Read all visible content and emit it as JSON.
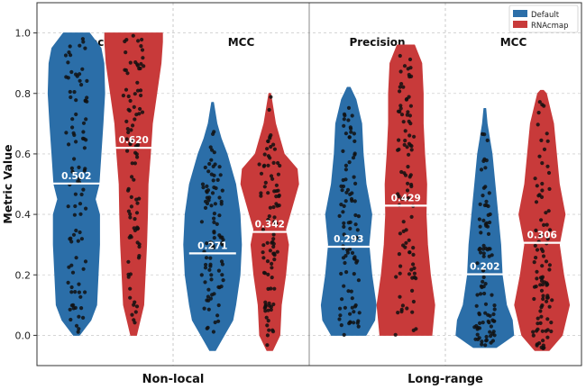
{
  "chart_data": {
    "type": "violin",
    "ylabel": "Metric Value",
    "ylim": [
      -0.1,
      1.1
    ],
    "yticks": [
      "0.0",
      "0.2",
      "0.4",
      "0.6",
      "0.8",
      "1.0"
    ],
    "grid": true,
    "legend_position": "top-right",
    "groups": [
      {
        "label": "Non-local",
        "panels": [
          {
            "label": "Precision",
            "violins": [
              {
                "series": "Default",
                "median": 0.502,
                "median_label": "0.502",
                "min": 0.0,
                "max": 1.0,
                "profile": [
                  [
                    0.0,
                    0.1
                  ],
                  [
                    0.05,
                    0.5
                  ],
                  [
                    0.1,
                    0.7
                  ],
                  [
                    0.2,
                    0.75
                  ],
                  [
                    0.3,
                    0.8
                  ],
                  [
                    0.4,
                    0.8
                  ],
                  [
                    0.45,
                    0.65
                  ],
                  [
                    0.5,
                    0.78
                  ],
                  [
                    0.6,
                    0.85
                  ],
                  [
                    0.7,
                    0.92
                  ],
                  [
                    0.8,
                    0.98
                  ],
                  [
                    0.9,
                    0.95
                  ],
                  [
                    0.95,
                    0.85
                  ],
                  [
                    1.0,
                    0.45
                  ]
                ]
              },
              {
                "series": "RNAcmap",
                "median": 0.62,
                "median_label": "0.620",
                "min": 0.0,
                "max": 1.0,
                "profile": [
                  [
                    0.0,
                    0.1
                  ],
                  [
                    0.1,
                    0.35
                  ],
                  [
                    0.2,
                    0.4
                  ],
                  [
                    0.3,
                    0.45
                  ],
                  [
                    0.4,
                    0.48
                  ],
                  [
                    0.5,
                    0.5
                  ],
                  [
                    0.6,
                    0.58
                  ],
                  [
                    0.7,
                    0.65
                  ],
                  [
                    0.8,
                    0.8
                  ],
                  [
                    0.9,
                    0.95
                  ],
                  [
                    0.97,
                    1.0
                  ],
                  [
                    1.0,
                    1.0
                  ]
                ]
              }
            ]
          },
          {
            "label": "MCC",
            "violins": [
              {
                "series": "Default",
                "median": 0.271,
                "median_label": "0.271",
                "min": -0.05,
                "max": 0.77,
                "profile": [
                  [
                    -0.05,
                    0.1
                  ],
                  [
                    0.0,
                    0.4
                  ],
                  [
                    0.05,
                    0.7
                  ],
                  [
                    0.1,
                    0.8
                  ],
                  [
                    0.2,
                    0.95
                  ],
                  [
                    0.3,
                    1.0
                  ],
                  [
                    0.4,
                    0.95
                  ],
                  [
                    0.5,
                    0.8
                  ],
                  [
                    0.6,
                    0.5
                  ],
                  [
                    0.65,
                    0.3
                  ],
                  [
                    0.7,
                    0.15
                  ],
                  [
                    0.77,
                    0.03
                  ]
                ]
              },
              {
                "series": "RNAcmap",
                "median": 0.342,
                "median_label": "0.342",
                "min": -0.05,
                "max": 0.8,
                "profile": [
                  [
                    -0.05,
                    0.1
                  ],
                  [
                    0.0,
                    0.35
                  ],
                  [
                    0.1,
                    0.4
                  ],
                  [
                    0.2,
                    0.55
                  ],
                  [
                    0.3,
                    0.65
                  ],
                  [
                    0.35,
                    0.55
                  ],
                  [
                    0.4,
                    0.7
                  ],
                  [
                    0.5,
                    1.0
                  ],
                  [
                    0.55,
                    0.95
                  ],
                  [
                    0.6,
                    0.5
                  ],
                  [
                    0.7,
                    0.2
                  ],
                  [
                    0.8,
                    0.03
                  ]
                ]
              }
            ]
          }
        ]
      },
      {
        "label": "Long-range",
        "panels": [
          {
            "label": "Precision",
            "violins": [
              {
                "series": "Default",
                "median": 0.293,
                "median_label": "0.293",
                "min": 0.0,
                "max": 0.82,
                "profile": [
                  [
                    0.0,
                    0.6
                  ],
                  [
                    0.05,
                    0.9
                  ],
                  [
                    0.1,
                    0.95
                  ],
                  [
                    0.2,
                    0.8
                  ],
                  [
                    0.3,
                    0.7
                  ],
                  [
                    0.4,
                    0.8
                  ],
                  [
                    0.5,
                    0.6
                  ],
                  [
                    0.6,
                    0.5
                  ],
                  [
                    0.7,
                    0.45
                  ],
                  [
                    0.78,
                    0.25
                  ],
                  [
                    0.82,
                    0.05
                  ]
                ]
              },
              {
                "series": "RNAcmap",
                "median": 0.429,
                "median_label": "0.429",
                "min": 0.0,
                "max": 0.96,
                "profile": [
                  [
                    0.0,
                    0.9
                  ],
                  [
                    0.1,
                    1.0
                  ],
                  [
                    0.2,
                    0.85
                  ],
                  [
                    0.3,
                    0.75
                  ],
                  [
                    0.4,
                    0.7
                  ],
                  [
                    0.5,
                    0.72
                  ],
                  [
                    0.6,
                    0.65
                  ],
                  [
                    0.7,
                    0.6
                  ],
                  [
                    0.8,
                    0.6
                  ],
                  [
                    0.9,
                    0.55
                  ],
                  [
                    0.96,
                    0.3
                  ]
                ]
              }
            ]
          },
          {
            "label": "MCC",
            "violins": [
              {
                "series": "Default",
                "median": 0.202,
                "median_label": "0.202",
                "min": -0.04,
                "max": 0.75,
                "profile": [
                  [
                    -0.04,
                    0.4
                  ],
                  [
                    0.0,
                    1.0
                  ],
                  [
                    0.05,
                    0.95
                  ],
                  [
                    0.1,
                    0.75
                  ],
                  [
                    0.2,
                    0.6
                  ],
                  [
                    0.3,
                    0.55
                  ],
                  [
                    0.4,
                    0.45
                  ],
                  [
                    0.5,
                    0.35
                  ],
                  [
                    0.6,
                    0.25
                  ],
                  [
                    0.7,
                    0.08
                  ],
                  [
                    0.75,
                    0.03
                  ]
                ]
              },
              {
                "series": "RNAcmap",
                "median": 0.306,
                "median_label": "0.306",
                "min": -0.05,
                "max": 0.81,
                "profile": [
                  [
                    -0.05,
                    0.25
                  ],
                  [
                    0.0,
                    0.7
                  ],
                  [
                    0.1,
                    0.95
                  ],
                  [
                    0.2,
                    0.75
                  ],
                  [
                    0.3,
                    0.6
                  ],
                  [
                    0.4,
                    0.8
                  ],
                  [
                    0.5,
                    0.6
                  ],
                  [
                    0.6,
                    0.5
                  ],
                  [
                    0.7,
                    0.4
                  ],
                  [
                    0.8,
                    0.15
                  ],
                  [
                    0.81,
                    0.05
                  ]
                ]
              }
            ]
          }
        ]
      }
    ],
    "legend": [
      {
        "name": "Default",
        "color": "#2b6ea8"
      },
      {
        "name": "RNAcmap",
        "color": "#c83a3a"
      }
    ]
  }
}
